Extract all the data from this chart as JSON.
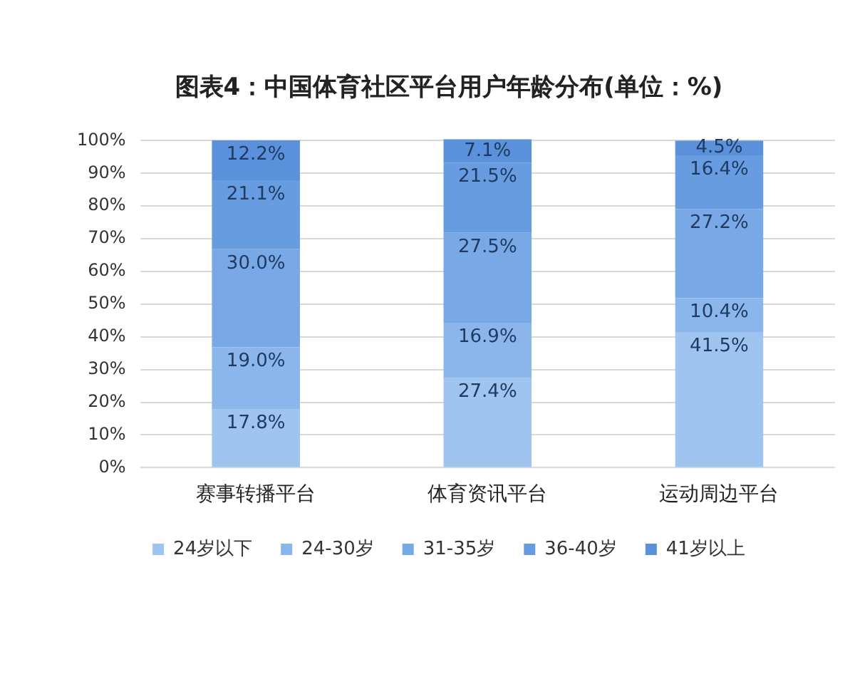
{
  "chart_data": {
    "type": "bar",
    "title": "图表4：中国体育社区平台用户年龄分布(单位：%)",
    "categories": [
      "赛事转播平台",
      "体育资讯平台",
      "运动周边平台"
    ],
    "stacked": true,
    "series": [
      {
        "name": "24岁以下",
        "color": "#9fc4f0",
        "values": [
          17.8,
          27.4,
          41.5
        ],
        "value_labels": [
          "17.8%",
          "27.4%",
          "41.5%"
        ]
      },
      {
        "name": "24-30岁",
        "color": "#8ab6eb",
        "values": [
          19.0,
          16.9,
          10.4
        ],
        "value_labels": [
          "19.0%",
          "16.9%",
          "10.4%"
        ]
      },
      {
        "name": "31-35岁",
        "color": "#78a9e6",
        "values": [
          30.0,
          27.5,
          27.2
        ],
        "value_labels": [
          "30.0%",
          "27.5%",
          "27.2%"
        ]
      },
      {
        "name": "36-40岁",
        "color": "#679ce0",
        "values": [
          21.1,
          21.5,
          16.4
        ],
        "value_labels": [
          "21.1%",
          "21.5%",
          "16.4%"
        ]
      },
      {
        "name": "41岁以上",
        "color": "#5b90da",
        "values": [
          12.2,
          7.1,
          4.5
        ],
        "value_labels": [
          "12.2%",
          "7.1%",
          "4.5%"
        ]
      }
    ],
    "ylim": [
      0,
      101
    ],
    "yticks": [
      {
        "value": 0,
        "label": "0%"
      },
      {
        "value": 10,
        "label": "10%"
      },
      {
        "value": 20,
        "label": "20%"
      },
      {
        "value": 30,
        "label": "30%"
      },
      {
        "value": 40,
        "label": "40%"
      },
      {
        "value": 50,
        "label": "50%"
      },
      {
        "value": 60,
        "label": "60%"
      },
      {
        "value": 70,
        "label": "70%"
      },
      {
        "value": 80,
        "label": "80%"
      },
      {
        "value": 90,
        "label": "90%"
      },
      {
        "value": 100,
        "label": "100%"
      }
    ],
    "grid": "y",
    "legend": "bottom"
  }
}
